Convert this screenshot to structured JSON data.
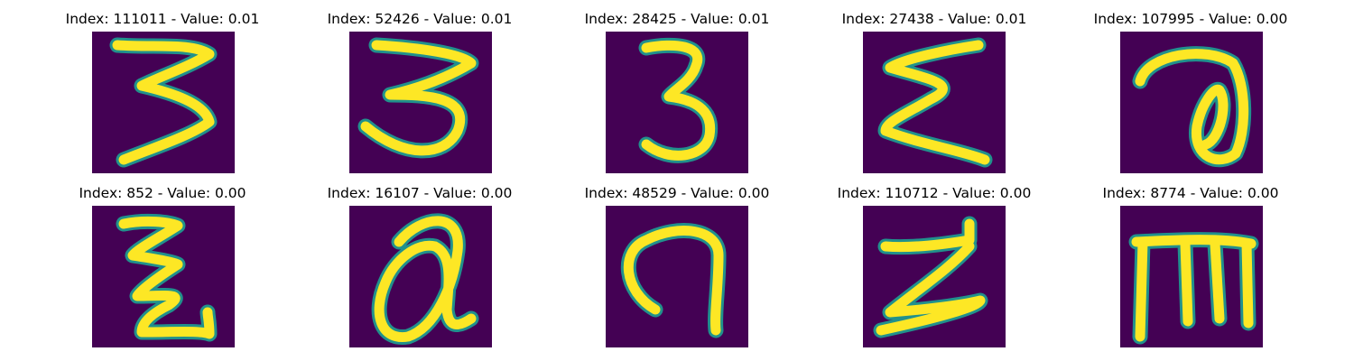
{
  "panels": [
    {
      "title": "Index: 111011 - Value: 0.01"
    },
    {
      "title": "Index: 52426 - Value: 0.01"
    },
    {
      "title": "Index: 28425 - Value: 0.01"
    },
    {
      "title": "Index: 27438 - Value: 0.01"
    },
    {
      "title": "Index: 107995 - Value: 0.00"
    },
    {
      "title": "Index: 852 - Value: 0.00"
    },
    {
      "title": "Index: 16107 - Value: 0.00"
    },
    {
      "title": "Index: 48529 - Value: 0.00"
    },
    {
      "title": "Index: 110712 - Value: 0.00"
    },
    {
      "title": "Index: 8774 - Value: 0.00"
    }
  ],
  "colors": {
    "background": "#440154",
    "edge": "#21918c",
    "stroke": "#fde725"
  }
}
